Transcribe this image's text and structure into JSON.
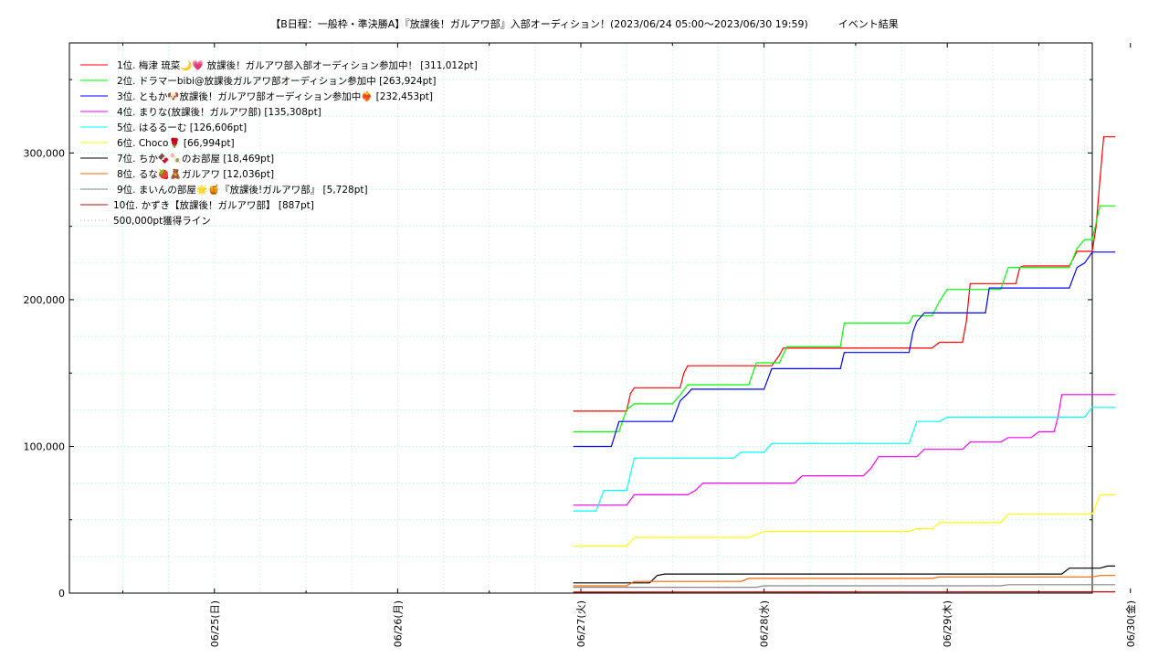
{
  "title": "【B日程：一般枠・準決勝A】『放課後！ガルアワ部』入部オーディション！(2023/06/24 05:00〜2023/06/30 19:59)　　　イベント結果",
  "chart_data": {
    "type": "line",
    "grid": true,
    "legend_position": "top-left",
    "y_tick_labels": [
      "0",
      "100,000",
      "200,000",
      "300,000"
    ],
    "x_tick_labels": [
      "06/25(日)",
      "06/26(月)",
      "06/27(火)",
      "06/28(水)",
      "06/29(木)",
      "06/30(金)"
    ],
    "x_range_hours": [
      0,
      134
    ],
    "y_range": [
      0,
      375000
    ],
    "series": [
      {
        "name": "1位. 梅津 琉菜🌙💗 放課後！ガルアワ部入部オーディション参加中！ [311,012pt]",
        "color": "#ff0000",
        "points": [
          [
            66,
            124000
          ],
          [
            73,
            124000
          ],
          [
            73.5,
            136000
          ],
          [
            74,
            140000
          ],
          [
            80,
            140000
          ],
          [
            80.5,
            150000
          ],
          [
            81,
            155000
          ],
          [
            92,
            155000
          ],
          [
            93,
            162000
          ],
          [
            93.5,
            167000
          ],
          [
            113,
            167000
          ],
          [
            114,
            171000
          ],
          [
            117,
            171000
          ],
          [
            117.5,
            185000
          ],
          [
            118,
            211000
          ],
          [
            124,
            211000
          ],
          [
            124.5,
            222000
          ],
          [
            125,
            223000
          ],
          [
            131,
            223000
          ],
          [
            132,
            233000
          ],
          [
            134,
            233000
          ],
          [
            134.5,
            250000
          ],
          [
            135,
            282000
          ],
          [
            135.5,
            311012
          ],
          [
            137,
            311012
          ]
        ]
      },
      {
        "name": "2位. ドラマーbibi@放課後ガルアワ部オーディション参加中 [263,924pt]",
        "color": "#00ff00",
        "points": [
          [
            66,
            110000
          ],
          [
            72,
            110000
          ],
          [
            72.5,
            118000
          ],
          [
            73,
            125000
          ],
          [
            74,
            129000
          ],
          [
            79,
            129000
          ],
          [
            80,
            135000
          ],
          [
            81,
            142000
          ],
          [
            89,
            142000
          ],
          [
            90,
            157000
          ],
          [
            93,
            157000
          ],
          [
            94,
            168000
          ],
          [
            101,
            168000
          ],
          [
            101.5,
            184000
          ],
          [
            110,
            184000
          ],
          [
            110.5,
            189000
          ],
          [
            113,
            189000
          ],
          [
            114,
            199000
          ],
          [
            115,
            207000
          ],
          [
            122,
            207000
          ],
          [
            123,
            222000
          ],
          [
            131,
            222000
          ],
          [
            132,
            235000
          ],
          [
            133,
            241000
          ],
          [
            134,
            241000
          ],
          [
            135,
            263924
          ],
          [
            137,
            263924
          ]
        ]
      },
      {
        "name": "3位. ともか🐶放課後！ガルアワ部オーディション参加中❤️‍🔥 [232,453pt]",
        "color": "#0000ff",
        "points": [
          [
            66,
            100000
          ],
          [
            71,
            100000
          ],
          [
            72,
            117000
          ],
          [
            79,
            117000
          ],
          [
            80,
            131000
          ],
          [
            81,
            136000
          ],
          [
            81.5,
            139000
          ],
          [
            91,
            139000
          ],
          [
            92,
            153000
          ],
          [
            101,
            153000
          ],
          [
            101.5,
            164000
          ],
          [
            110,
            164000
          ],
          [
            110.5,
            178000
          ],
          [
            111,
            185000
          ],
          [
            112,
            191000
          ],
          [
            120,
            191000
          ],
          [
            120.5,
            208000
          ],
          [
            131,
            208000
          ],
          [
            132,
            222000
          ],
          [
            133,
            225000
          ],
          [
            134,
            232453
          ],
          [
            137,
            232453
          ]
        ]
      },
      {
        "name": "4位. まりな(放課後！ガルアワ部) [135,308pt]",
        "color": "#ff00ff",
        "points": [
          [
            66,
            60000
          ],
          [
            73,
            60000
          ],
          [
            74,
            67000
          ],
          [
            81,
            67000
          ],
          [
            82,
            70000
          ],
          [
            83,
            75000
          ],
          [
            95,
            75000
          ],
          [
            96,
            80000
          ],
          [
            104,
            80000
          ],
          [
            105,
            85000
          ],
          [
            106,
            93000
          ],
          [
            111,
            93000
          ],
          [
            112,
            98000
          ],
          [
            117,
            98000
          ],
          [
            118,
            103000
          ],
          [
            122,
            103000
          ],
          [
            123,
            106000
          ],
          [
            126,
            106000
          ],
          [
            127,
            110000
          ],
          [
            129,
            110000
          ],
          [
            129.5,
            120000
          ],
          [
            130,
            135308
          ],
          [
            137,
            135308
          ]
        ]
      },
      {
        "name": "5位. はるるーむ [126,606pt]",
        "color": "#00ffff",
        "points": [
          [
            66,
            56000
          ],
          [
            69,
            56000
          ],
          [
            70,
            70000
          ],
          [
            73,
            70000
          ],
          [
            74,
            92000
          ],
          [
            87,
            92000
          ],
          [
            88,
            96000
          ],
          [
            91,
            96000
          ],
          [
            92,
            102000
          ],
          [
            110,
            102000
          ],
          [
            111,
            117000
          ],
          [
            114,
            117000
          ],
          [
            115,
            120000
          ],
          [
            133,
            120000
          ],
          [
            134,
            126606
          ],
          [
            137,
            126606
          ]
        ]
      },
      {
        "name": "6位. Choco🌹 [66,994pt]",
        "color": "#ffff00",
        "points": [
          [
            66,
            32000
          ],
          [
            73,
            32000
          ],
          [
            74,
            38000
          ],
          [
            89,
            38000
          ],
          [
            90,
            40000
          ],
          [
            91,
            42000
          ],
          [
            110,
            42000
          ],
          [
            111,
            44000
          ],
          [
            113,
            44000
          ],
          [
            114,
            48000
          ],
          [
            122,
            48000
          ],
          [
            123,
            54000
          ],
          [
            134,
            54000
          ],
          [
            135,
            66994
          ],
          [
            137,
            66994
          ]
        ]
      },
      {
        "name": "7位. ちか🍫🍡のお部屋 [18,469pt]",
        "color": "#000000",
        "points": [
          [
            66,
            7000
          ],
          [
            76,
            7000
          ],
          [
            77,
            12000
          ],
          [
            78,
            13000
          ],
          [
            130,
            13000
          ],
          [
            131,
            17000
          ],
          [
            135,
            17000
          ],
          [
            136,
            18469
          ],
          [
            137,
            18469
          ]
        ]
      },
      {
        "name": "8位. るな🍓🧸ガルアワ [12,036pt]",
        "color": "#ff6600",
        "points": [
          [
            66,
            5000
          ],
          [
            73,
            5000
          ],
          [
            74,
            8000
          ],
          [
            88,
            8000
          ],
          [
            89,
            10000
          ],
          [
            113,
            10000
          ],
          [
            114,
            11000
          ],
          [
            134,
            11000
          ],
          [
            135,
            12036
          ],
          [
            137,
            12036
          ]
        ]
      },
      {
        "name": "9位. まいんの部屋🌟🍯『放課後!ガルアワ部』 [5,728pt]",
        "color": "#888888",
        "points": [
          [
            66,
            4000
          ],
          [
            90,
            4000
          ],
          [
            91,
            5000
          ],
          [
            122,
            5000
          ],
          [
            123,
            5728
          ],
          [
            137,
            5728
          ]
        ]
      },
      {
        "name": "10位. かずき【放課後！ガルアワ部】 [887pt]",
        "color": "#cc0000",
        "points": [
          [
            66,
            700
          ],
          [
            137,
            887
          ]
        ]
      },
      {
        "name": "500,000pt獲得ライン",
        "color": "#aaaaaa",
        "dotted": true,
        "points": []
      }
    ]
  }
}
